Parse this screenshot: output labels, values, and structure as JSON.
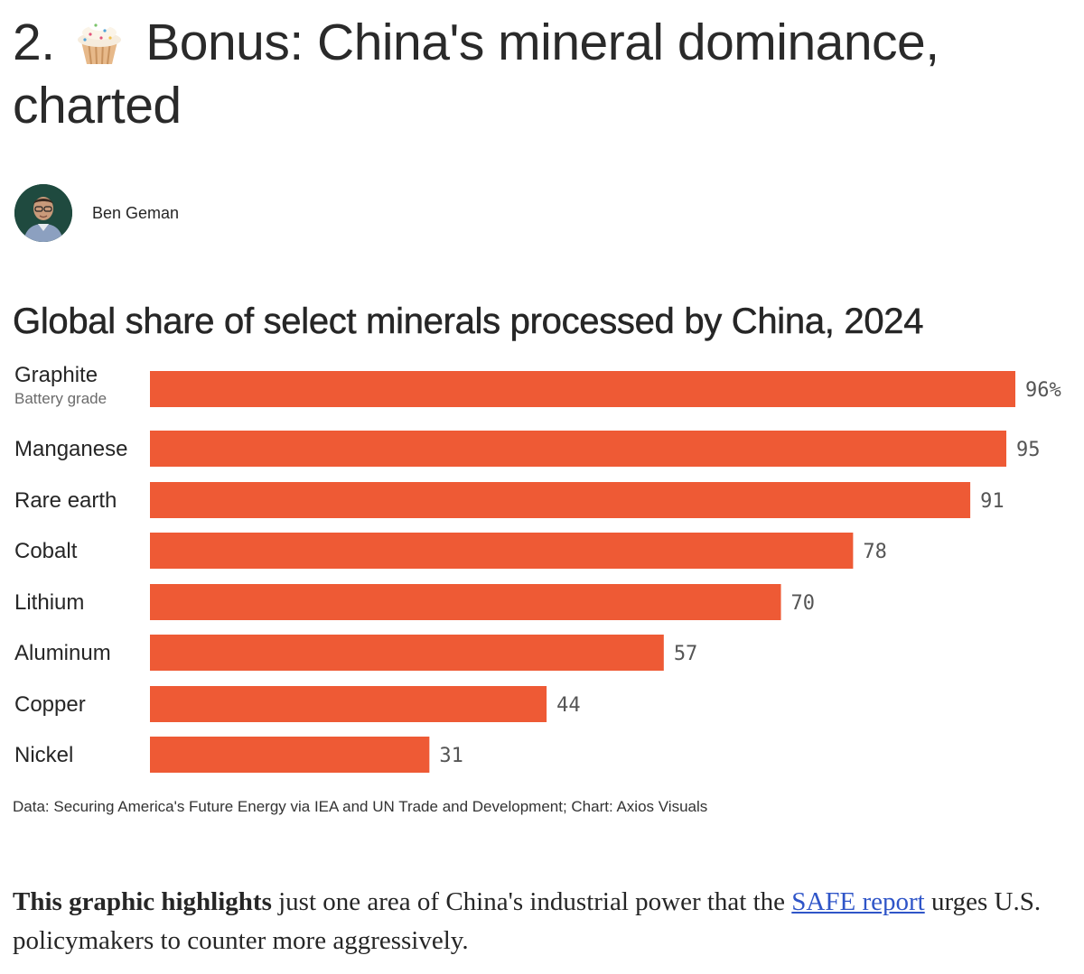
{
  "article": {
    "headline_number": "2.",
    "headline_text": "Bonus: China's mineral dominance, charted",
    "headline_icon": "cupcake-icon",
    "author": "Ben Geman"
  },
  "chart_data": {
    "type": "bar",
    "orientation": "horizontal",
    "title": "Global share of select minerals processed by China, 2024",
    "categories": [
      "Graphite",
      "Manganese",
      "Rare earth",
      "Cobalt",
      "Lithium",
      "Aluminum",
      "Copper",
      "Nickel"
    ],
    "subtitles": [
      "Battery grade",
      "",
      "",
      "",
      "",
      "",
      "",
      ""
    ],
    "values": [
      96,
      95,
      91,
      78,
      70,
      57,
      44,
      31
    ],
    "value_labels": [
      "96%",
      "95",
      "91",
      "78",
      "70",
      "57",
      "44",
      "31"
    ],
    "unit": "%",
    "xlim": [
      0,
      96
    ],
    "grid": false,
    "bar_color": "#EE5A35",
    "source": "Data: Securing America's Future Energy via IEA and UN Trade and Development; Chart: Axios Visuals"
  },
  "body": {
    "lead_bold": "This graphic highlights",
    "text_before_link": " just one area of China's industrial power that the ",
    "link_text": "SAFE report",
    "text_after_link": " urges U.S. policymakers to counter more aggressively."
  },
  "colors": {
    "link": "#2F55C8",
    "avatar_bg": "#1F4A3F"
  }
}
